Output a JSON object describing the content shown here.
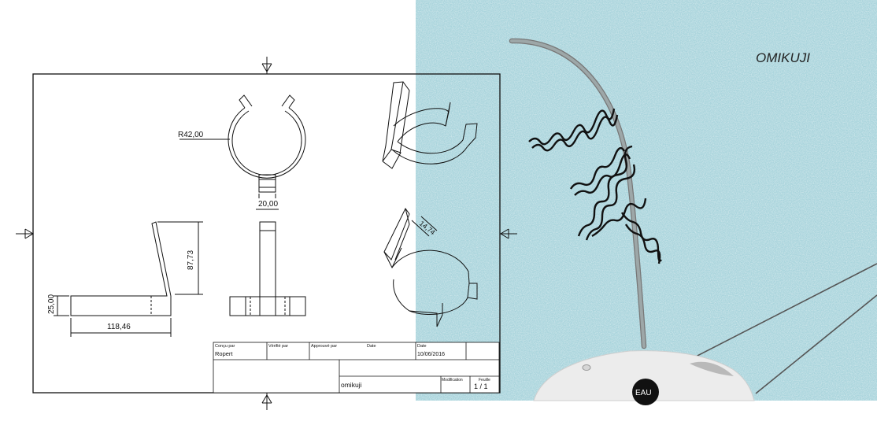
{
  "drawing": {
    "dimensions": {
      "radius": "R42,00",
      "width": "20,00",
      "height": "87,73",
      "base_height": "25,00",
      "length": "118,46",
      "angle": "14,74"
    },
    "title_block": {
      "designed_by_label": "Conçu par",
      "designed_by_value": "Ropert",
      "checked_by_label": "Vérifié par",
      "approved_by_label": "Approuvé par",
      "date_label_1": "Date",
      "date_label_2": "Date",
      "date_value": "10/06/2016",
      "part_name": "omikuji",
      "modification_label": "Modification",
      "sheet_label": "Feuille",
      "sheet_value": "1 / 1"
    }
  },
  "photo": {
    "title": "OMIKUJI",
    "badge_text": "EAU",
    "colors": {
      "background": "#a9d4dc",
      "branch": "#8e9a9b",
      "base": "#ececec"
    }
  }
}
